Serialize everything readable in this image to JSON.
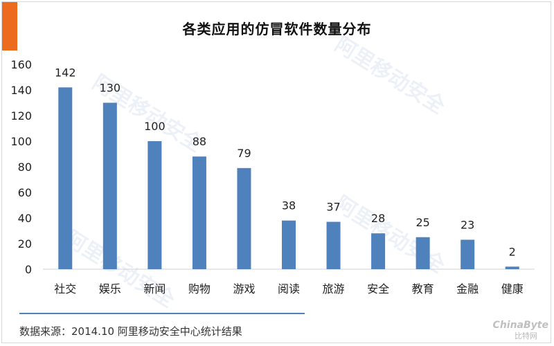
{
  "chart_data": {
    "type": "bar",
    "title": "各类应用的仿冒软件数量分布",
    "categories": [
      "社交",
      "娱乐",
      "新闻",
      "购物",
      "游戏",
      "阅读",
      "旅游",
      "安全",
      "教育",
      "金融",
      "健康"
    ],
    "values": [
      142,
      130,
      100,
      88,
      79,
      38,
      37,
      28,
      25,
      23,
      2
    ],
    "ylim": [
      0,
      160
    ],
    "yticks": [
      0,
      20,
      40,
      60,
      80,
      100,
      120,
      140,
      160
    ],
    "grid": false,
    "legend": "none",
    "bar_color": "#4f81bd",
    "accent_color": "#ec6b1f"
  },
  "source": "数据来源：2014.10 阿里移动安全中心统计结果",
  "watermark": {
    "text": "阿里移动安全",
    "sub": "MOBILE SECURITY OF ALIBABA"
  },
  "brand": {
    "logo": "ChinaByte",
    "sub": "比特网"
  }
}
